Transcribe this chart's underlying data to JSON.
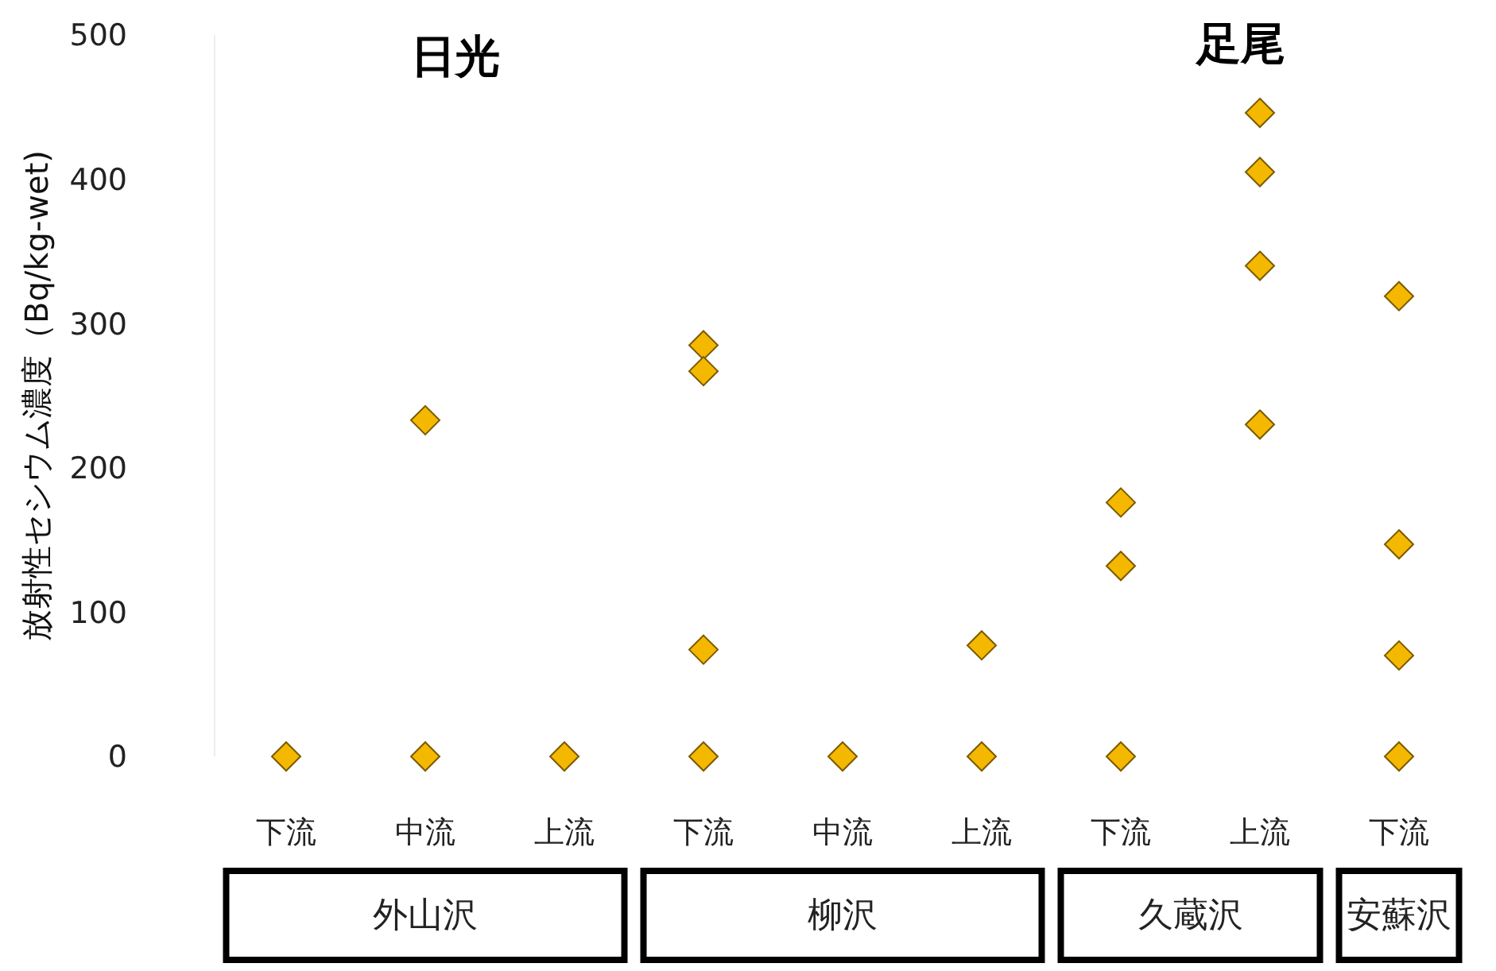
{
  "chart_data": {
    "type": "scatter",
    "ylabel": "放射性セシウム濃度（Bq/kg-wet)",
    "categories": [
      "下流",
      "中流",
      "上流",
      "下流",
      "中流",
      "上流",
      "下流",
      "上流",
      "下流"
    ],
    "series": [
      {
        "color": "#f5b800",
        "values": [
          0,
          233,
          0,
          285,
          0,
          77,
          176,
          446,
          319
        ]
      },
      {
        "color": "#f5b800",
        "values": [
          null,
          0,
          null,
          267,
          null,
          0,
          132,
          405,
          147
        ]
      },
      {
        "color": "#f5b800",
        "values": [
          null,
          null,
          null,
          74,
          null,
          null,
          0,
          340,
          70
        ]
      },
      {
        "color": "#f5b800",
        "values": [
          null,
          null,
          null,
          0,
          null,
          null,
          null,
          230,
          0
        ]
      }
    ],
    "ylim": [
      0,
      500
    ],
    "yticks": [
      0,
      100,
      200,
      300,
      400,
      500
    ],
    "marker": "diamond",
    "grid": false,
    "annotations": [
      "日光",
      "足尾",
      "外山沢",
      "柳沢",
      "久蔵沢",
      "安蘇沢"
    ]
  }
}
